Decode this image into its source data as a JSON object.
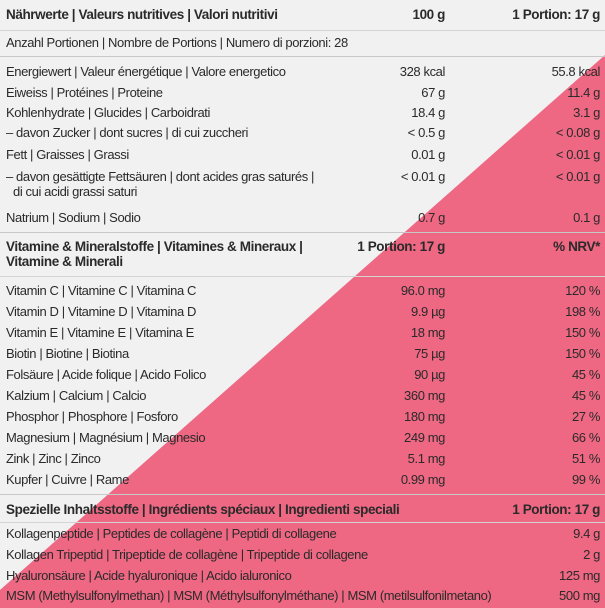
{
  "section1": {
    "header": {
      "label": "Nährwerte | Valeurs nutritives | Valori nutritivi",
      "col1": "100 g",
      "col2": "1 Portion: 17 g"
    },
    "portions": "Anzahl Portionen | Nombre de Portions | Numero di porzioni: 28",
    "rows": [
      {
        "label": "Energiewert | Valeur énergétique | Valore energetico",
        "v1": "328 kcal",
        "v2": "55.8 kcal"
      },
      {
        "label": "Eiweiss | Protéines | Proteine",
        "v1": "67 g",
        "v2": "11.4 g"
      },
      {
        "label": "Kohlenhydrate | Glucides | Carboidrati",
        "v1": "18.4 g",
        "v2": "3.1 g"
      },
      {
        "label": "– davon Zucker | dont sucres | di cui zuccheri",
        "v1": "< 0.5 g",
        "v2": "< 0.08 g"
      },
      {
        "label": "Fett | Graisses | Grassi",
        "v1": "0.01 g",
        "v2": "< 0.01 g"
      },
      {
        "label": "– davon gesättigte Fettsäuren | dont acides gras saturés |",
        "label2": "di cui acidi grassi saturi",
        "v1": "< 0.01 g",
        "v2": "< 0.01 g"
      },
      {
        "label": "Natrium | Sodium | Sodio",
        "v1": "0.7 g",
        "v2": "0.1 g"
      }
    ]
  },
  "section2": {
    "header": {
      "label": "Vitamine & Mineralstoffe | Vitamines & Mineraux |",
      "label2": "Vitamine & Minerali",
      "col1": "1 Portion: 17 g",
      "col2": "% NRV*"
    },
    "rows": [
      {
        "label": "Vitamin C | Vitamine C | Vitamina C",
        "v1": "96.0 mg",
        "v2": "120 %"
      },
      {
        "label": "Vitamin D | Vitamine D | Vitamina D",
        "v1": "9.9 µg",
        "v2": "198 %"
      },
      {
        "label": "Vitamin E | Vitamine E | Vitamina E",
        "v1": "18 mg",
        "v2": "150 %"
      },
      {
        "label": "Biotin | Biotine | Biotina",
        "v1": "75 µg",
        "v2": "150 %"
      },
      {
        "label": "Folsäure | Acide folique | Acido Folico",
        "v1": "90 µg",
        "v2": "45 %"
      },
      {
        "label": "Kalzium | Calcium | Calcio",
        "v1": "360 mg",
        "v2": "45 %"
      },
      {
        "label": "Phosphor | Phosphore | Fosforo",
        "v1": "180 mg",
        "v2": "27 %"
      },
      {
        "label": "Magnesium | Magnésium | Magnesio",
        "v1": "249 mg",
        "v2": "66 %"
      },
      {
        "label": "Zink | Zinc | Zinco",
        "v1": "5.1 mg",
        "v2": "51 %"
      },
      {
        "label": "Kupfer | Cuivre | Rame",
        "v1": "0.99 mg",
        "v2": "99 %"
      }
    ]
  },
  "section3": {
    "header": {
      "label": "Spezielle Inhaltsstoffe | Ingrédients spéciaux | Ingredienti speciali",
      "col2": "1 Portion: 17 g"
    },
    "rows": [
      {
        "label": "Kollagenpeptide | Peptides de collagène | Peptidi di collagene",
        "v2": "9.4 g"
      },
      {
        "label": "Kollagen Tripeptid | Tripeptide de collagène | Tripeptide di collagene",
        "v2": "2 g"
      },
      {
        "label": "Hyaluronsäure | Acide hyaluronique | Acido ialuronico",
        "v2": "125 mg"
      },
      {
        "label": "MSM (Methylsulfonylmethan) | MSM (Méthylsulfonylméthane) | MSM (metilsulfonilmetano)",
        "v2": "500 mg"
      }
    ]
  },
  "colors": {
    "background": "#f1f1f1",
    "accent": "#ee6783",
    "text": "#2a2a2a",
    "divider": "#d4d4d4"
  }
}
